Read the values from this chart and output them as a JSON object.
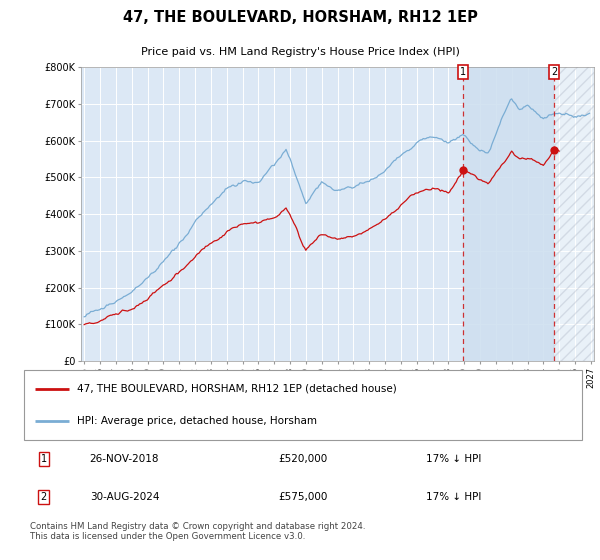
{
  "title": "47, THE BOULEVARD, HORSHAM, RH12 1EP",
  "subtitle": "Price paid vs. HM Land Registry's House Price Index (HPI)",
  "ylim": [
    0,
    800000
  ],
  "background_color": "#dce8f5",
  "plot_bg_color": "#dce8f5",
  "hpi_color": "#7aadd4",
  "price_color": "#cc1111",
  "transaction1_date": "26-NOV-2018",
  "transaction1_price": 520000,
  "transaction1_hpi_diff": "17% ↓ HPI",
  "transaction1_year": 2018.9,
  "transaction2_date": "30-AUG-2024",
  "transaction2_price": 575000,
  "transaction2_hpi_diff": "17% ↓ HPI",
  "transaction2_year": 2024.67,
  "legend_label1": "47, THE BOULEVARD, HORSHAM, RH12 1EP (detached house)",
  "legend_label2": "HPI: Average price, detached house, Horsham",
  "footer": "Contains HM Land Registry data © Crown copyright and database right 2024.\nThis data is licensed under the Open Government Licence v3.0."
}
